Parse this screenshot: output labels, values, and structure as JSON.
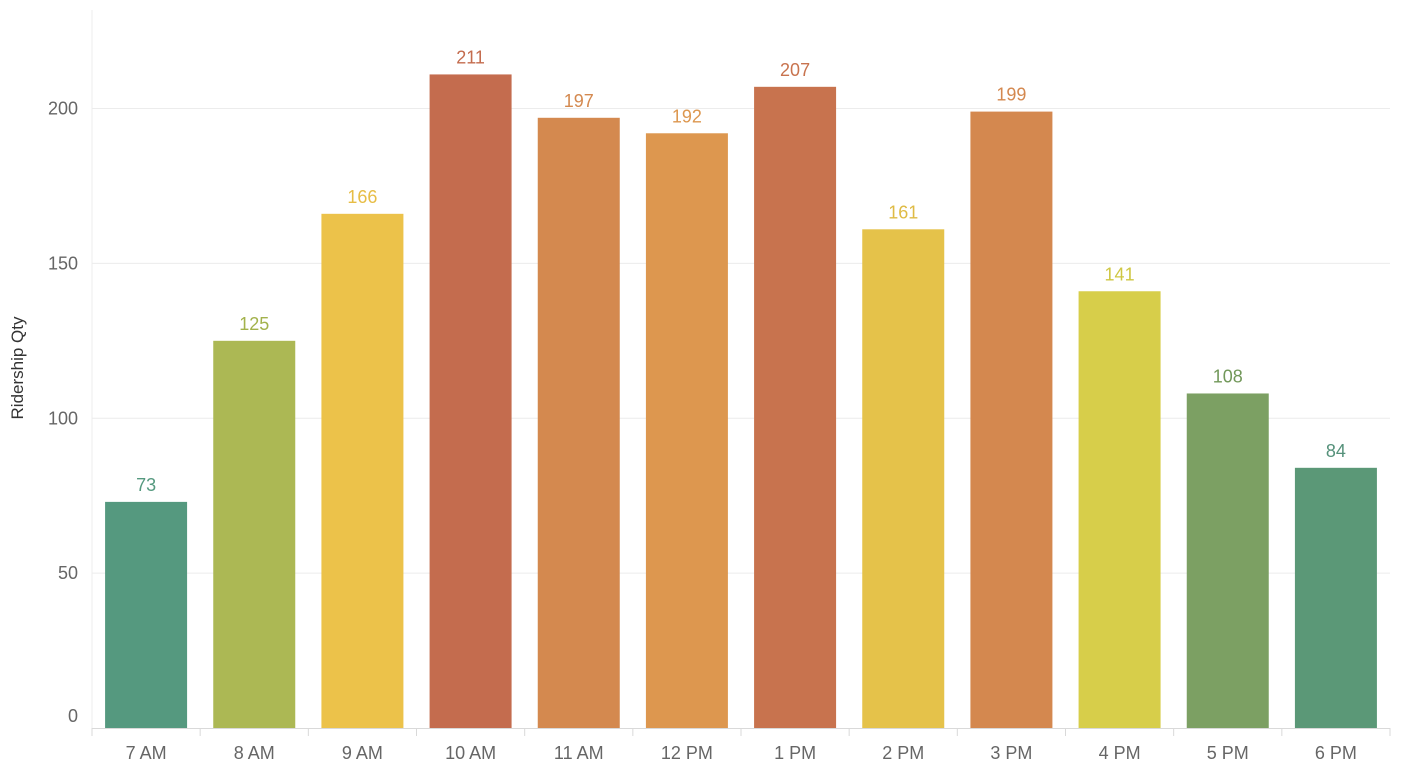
{
  "chart_data": {
    "type": "bar",
    "title": "",
    "xlabel": "",
    "ylabel": "Ridership Qty",
    "ylim": [
      0,
      230
    ],
    "yticks": [
      0,
      50,
      100,
      150,
      200
    ],
    "grid": true,
    "legend": "none",
    "categories": [
      "7 AM",
      "8 AM",
      "9 AM",
      "10 AM",
      "11 AM",
      "12 PM",
      "1 PM",
      "2 PM",
      "3 PM",
      "4 PM",
      "5 PM",
      "6 PM"
    ],
    "values": [
      73,
      125,
      166,
      211,
      197,
      192,
      207,
      161,
      199,
      141,
      108,
      84
    ],
    "colors": [
      "#55997f",
      "#acb854",
      "#ecc24a",
      "#c46c4e",
      "#d4894f",
      "#dd974f",
      "#c8734e",
      "#e5c24a",
      "#d4884f",
      "#d7ce4a",
      "#7ca063",
      "#5b9877"
    ],
    "label_colors": [
      "#55997f",
      "#a3b24c",
      "#e7bd45",
      "#c46c4e",
      "#d4894f",
      "#dd974f",
      "#c8734e",
      "#dfbb45",
      "#d4884f",
      "#cfc743",
      "#72985a",
      "#55917a"
    ]
  }
}
